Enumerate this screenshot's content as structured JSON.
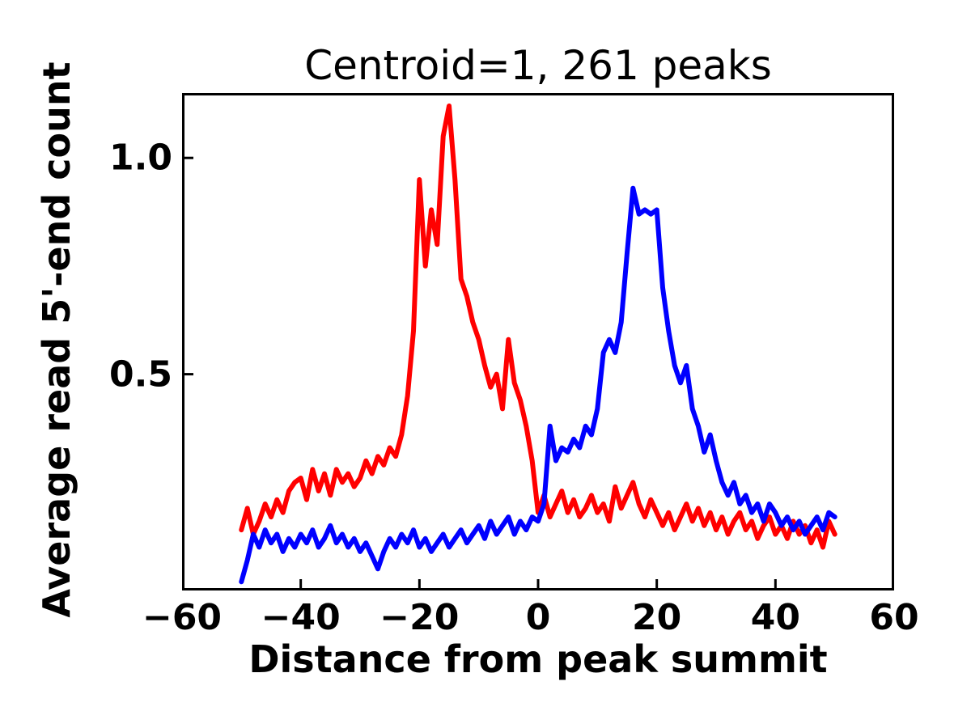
{
  "chart_data": {
    "type": "line",
    "title": "Centroid=1, 261 peaks",
    "xlabel": "Distance from peak summit",
    "ylabel": "Average read 5'-end count",
    "xlim": [
      -60,
      60
    ],
    "ylim": [
      0,
      1.15
    ],
    "xticks": [
      -60,
      -40,
      -20,
      0,
      20,
      40,
      60
    ],
    "xtick_labels": [
      "−60",
      "−40",
      "−20",
      "0",
      "20",
      "40",
      "60"
    ],
    "yticks": [
      0.5,
      1.0
    ],
    "ytick_labels": [
      "0.5",
      "1.0"
    ],
    "grid": false,
    "legend": "none",
    "frame_color": "#000000",
    "series": [
      {
        "name": "red",
        "color": "#ff0000",
        "x_start": -50,
        "x_step": 1,
        "values": [
          0.14,
          0.19,
          0.13,
          0.16,
          0.2,
          0.17,
          0.21,
          0.18,
          0.23,
          0.25,
          0.26,
          0.21,
          0.28,
          0.23,
          0.27,
          0.22,
          0.28,
          0.25,
          0.27,
          0.24,
          0.26,
          0.3,
          0.27,
          0.31,
          0.29,
          0.33,
          0.31,
          0.36,
          0.45,
          0.6,
          0.95,
          0.75,
          0.88,
          0.8,
          1.05,
          1.12,
          0.95,
          0.72,
          0.68,
          0.62,
          0.58,
          0.52,
          0.47,
          0.5,
          0.42,
          0.58,
          0.48,
          0.44,
          0.38,
          0.3,
          0.18,
          0.22,
          0.17,
          0.2,
          0.23,
          0.18,
          0.21,
          0.17,
          0.19,
          0.22,
          0.18,
          0.2,
          0.16,
          0.24,
          0.19,
          0.22,
          0.25,
          0.2,
          0.17,
          0.21,
          0.18,
          0.15,
          0.18,
          0.14,
          0.17,
          0.2,
          0.16,
          0.19,
          0.15,
          0.18,
          0.14,
          0.17,
          0.13,
          0.16,
          0.18,
          0.14,
          0.16,
          0.12,
          0.15,
          0.17,
          0.13,
          0.15,
          0.12,
          0.16,
          0.13,
          0.15,
          0.11,
          0.14,
          0.1,
          0.16,
          0.13
        ]
      },
      {
        "name": "blue",
        "color": "#0000ff",
        "x_start": -50,
        "x_step": 1,
        "values": [
          0.02,
          0.07,
          0.13,
          0.1,
          0.14,
          0.11,
          0.13,
          0.09,
          0.12,
          0.1,
          0.13,
          0.11,
          0.14,
          0.1,
          0.12,
          0.15,
          0.11,
          0.13,
          0.1,
          0.12,
          0.09,
          0.11,
          0.08,
          0.05,
          0.09,
          0.12,
          0.1,
          0.13,
          0.11,
          0.14,
          0.1,
          0.12,
          0.09,
          0.11,
          0.13,
          0.1,
          0.12,
          0.14,
          0.11,
          0.13,
          0.15,
          0.12,
          0.16,
          0.13,
          0.15,
          0.17,
          0.13,
          0.16,
          0.14,
          0.17,
          0.16,
          0.2,
          0.38,
          0.3,
          0.33,
          0.32,
          0.35,
          0.33,
          0.38,
          0.36,
          0.42,
          0.55,
          0.58,
          0.55,
          0.62,
          0.78,
          0.93,
          0.87,
          0.88,
          0.87,
          0.88,
          0.7,
          0.6,
          0.52,
          0.48,
          0.52,
          0.42,
          0.38,
          0.32,
          0.36,
          0.3,
          0.25,
          0.22,
          0.25,
          0.2,
          0.22,
          0.18,
          0.2,
          0.16,
          0.2,
          0.18,
          0.15,
          0.17,
          0.14,
          0.16,
          0.13,
          0.15,
          0.17,
          0.14,
          0.18,
          0.17
        ]
      }
    ]
  }
}
